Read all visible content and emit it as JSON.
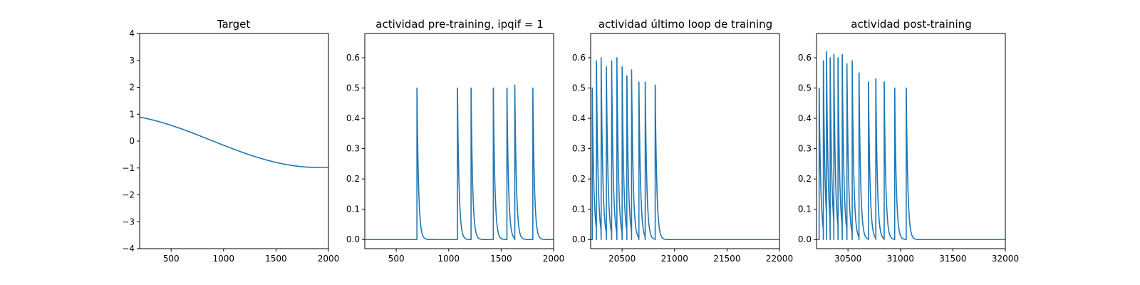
{
  "chart_data": [
    {
      "type": "line",
      "title": "Target",
      "xlabel": "",
      "ylabel": "",
      "xlim": [
        200,
        2000
      ],
      "ylim": [
        -4,
        4
      ],
      "xticks": [
        500,
        1000,
        1500,
        2000
      ],
      "yticks": [
        -4,
        -3,
        -2,
        -1,
        0,
        1,
        2,
        3,
        4
      ],
      "ytick_labels": [
        "−4",
        "−3",
        "−2",
        "−1",
        "0",
        "1",
        "2",
        "3",
        "4"
      ],
      "color": "#1f77b4",
      "series": [
        {
          "kind": "cosine",
          "description_points": [
            [
              200,
              0.89
            ],
            [
              500,
              0.6
            ],
            [
              1000,
              -0.2
            ],
            [
              1500,
              -0.8
            ],
            [
              1900,
              -0.98
            ],
            [
              2000,
              -0.98
            ]
          ]
        }
      ]
    },
    {
      "type": "line",
      "title": "actividad pre-training, ipqif = 1",
      "xlabel": "",
      "ylabel": "",
      "xlim": [
        200,
        2000
      ],
      "ylim": [
        -0.03,
        0.68
      ],
      "xticks": [
        500,
        1000,
        1500,
        2000
      ],
      "yticks": [
        0.0,
        0.1,
        0.2,
        0.3,
        0.4,
        0.5,
        0.6
      ],
      "ytick_labels": [
        "0.0",
        "0.1",
        "0.2",
        "0.3",
        "0.4",
        "0.5",
        "0.6"
      ],
      "color": "#1f77b4",
      "spikes": [
        {
          "t": 697,
          "peak": 0.5
        },
        {
          "t": 1083,
          "peak": 0.5
        },
        {
          "t": 1213,
          "peak": 0.5
        },
        {
          "t": 1425,
          "peak": 0.5
        },
        {
          "t": 1555,
          "peak": 0.5
        },
        {
          "t": 1630,
          "peak": 0.51
        },
        {
          "t": 1802,
          "peak": 0.5
        }
      ],
      "baseline": 0.0
    },
    {
      "type": "line",
      "title": "actividad último loop de training",
      "xlabel": "",
      "ylabel": "",
      "xlim": [
        20200,
        22000
      ],
      "ylim": [
        -0.03,
        0.68
      ],
      "xticks": [
        20500,
        21000,
        21500,
        22000
      ],
      "yticks": [
        0.0,
        0.1,
        0.2,
        0.3,
        0.4,
        0.5,
        0.6
      ],
      "ytick_labels": [
        "0.0",
        "0.1",
        "0.2",
        "0.3",
        "0.4",
        "0.5",
        "0.6"
      ],
      "color": "#1f77b4",
      "spikes": [
        {
          "t": 20215,
          "peak": 0.5
        },
        {
          "t": 20255,
          "peak": 0.59
        },
        {
          "t": 20300,
          "peak": 0.6
        },
        {
          "t": 20350,
          "peak": 0.57
        },
        {
          "t": 20400,
          "peak": 0.59
        },
        {
          "t": 20450,
          "peak": 0.6
        },
        {
          "t": 20500,
          "peak": 0.57
        },
        {
          "t": 20545,
          "peak": 0.54
        },
        {
          "t": 20590,
          "peak": 0.56
        },
        {
          "t": 20660,
          "peak": 0.52
        },
        {
          "t": 20720,
          "peak": 0.52
        },
        {
          "t": 20815,
          "peak": 0.51
        }
      ],
      "baseline": 0.0
    },
    {
      "type": "line",
      "title": "actividad post-training",
      "xlabel": "",
      "ylabel": "",
      "xlim": [
        30200,
        32000
      ],
      "ylim": [
        -0.03,
        0.68
      ],
      "xticks": [
        30500,
        31000,
        31500,
        32000
      ],
      "yticks": [
        0.0,
        0.1,
        0.2,
        0.3,
        0.4,
        0.5,
        0.6
      ],
      "ytick_labels": [
        "0.0",
        "0.1",
        "0.2",
        "0.3",
        "0.4",
        "0.5",
        "0.6"
      ],
      "color": "#1f77b4",
      "spikes": [
        {
          "t": 30225,
          "peak": 0.5
        },
        {
          "t": 30265,
          "peak": 0.59
        },
        {
          "t": 30295,
          "peak": 0.62
        },
        {
          "t": 30330,
          "peak": 0.6
        },
        {
          "t": 30365,
          "peak": 0.61
        },
        {
          "t": 30405,
          "peak": 0.6
        },
        {
          "t": 30445,
          "peak": 0.61
        },
        {
          "t": 30490,
          "peak": 0.58
        },
        {
          "t": 30540,
          "peak": 0.59
        },
        {
          "t": 30605,
          "peak": 0.55
        },
        {
          "t": 30695,
          "peak": 0.52
        },
        {
          "t": 30765,
          "peak": 0.53
        },
        {
          "t": 30845,
          "peak": 0.52
        },
        {
          "t": 30945,
          "peak": 0.5
        },
        {
          "t": 31055,
          "peak": 0.5
        }
      ],
      "baseline": 0.0
    }
  ]
}
